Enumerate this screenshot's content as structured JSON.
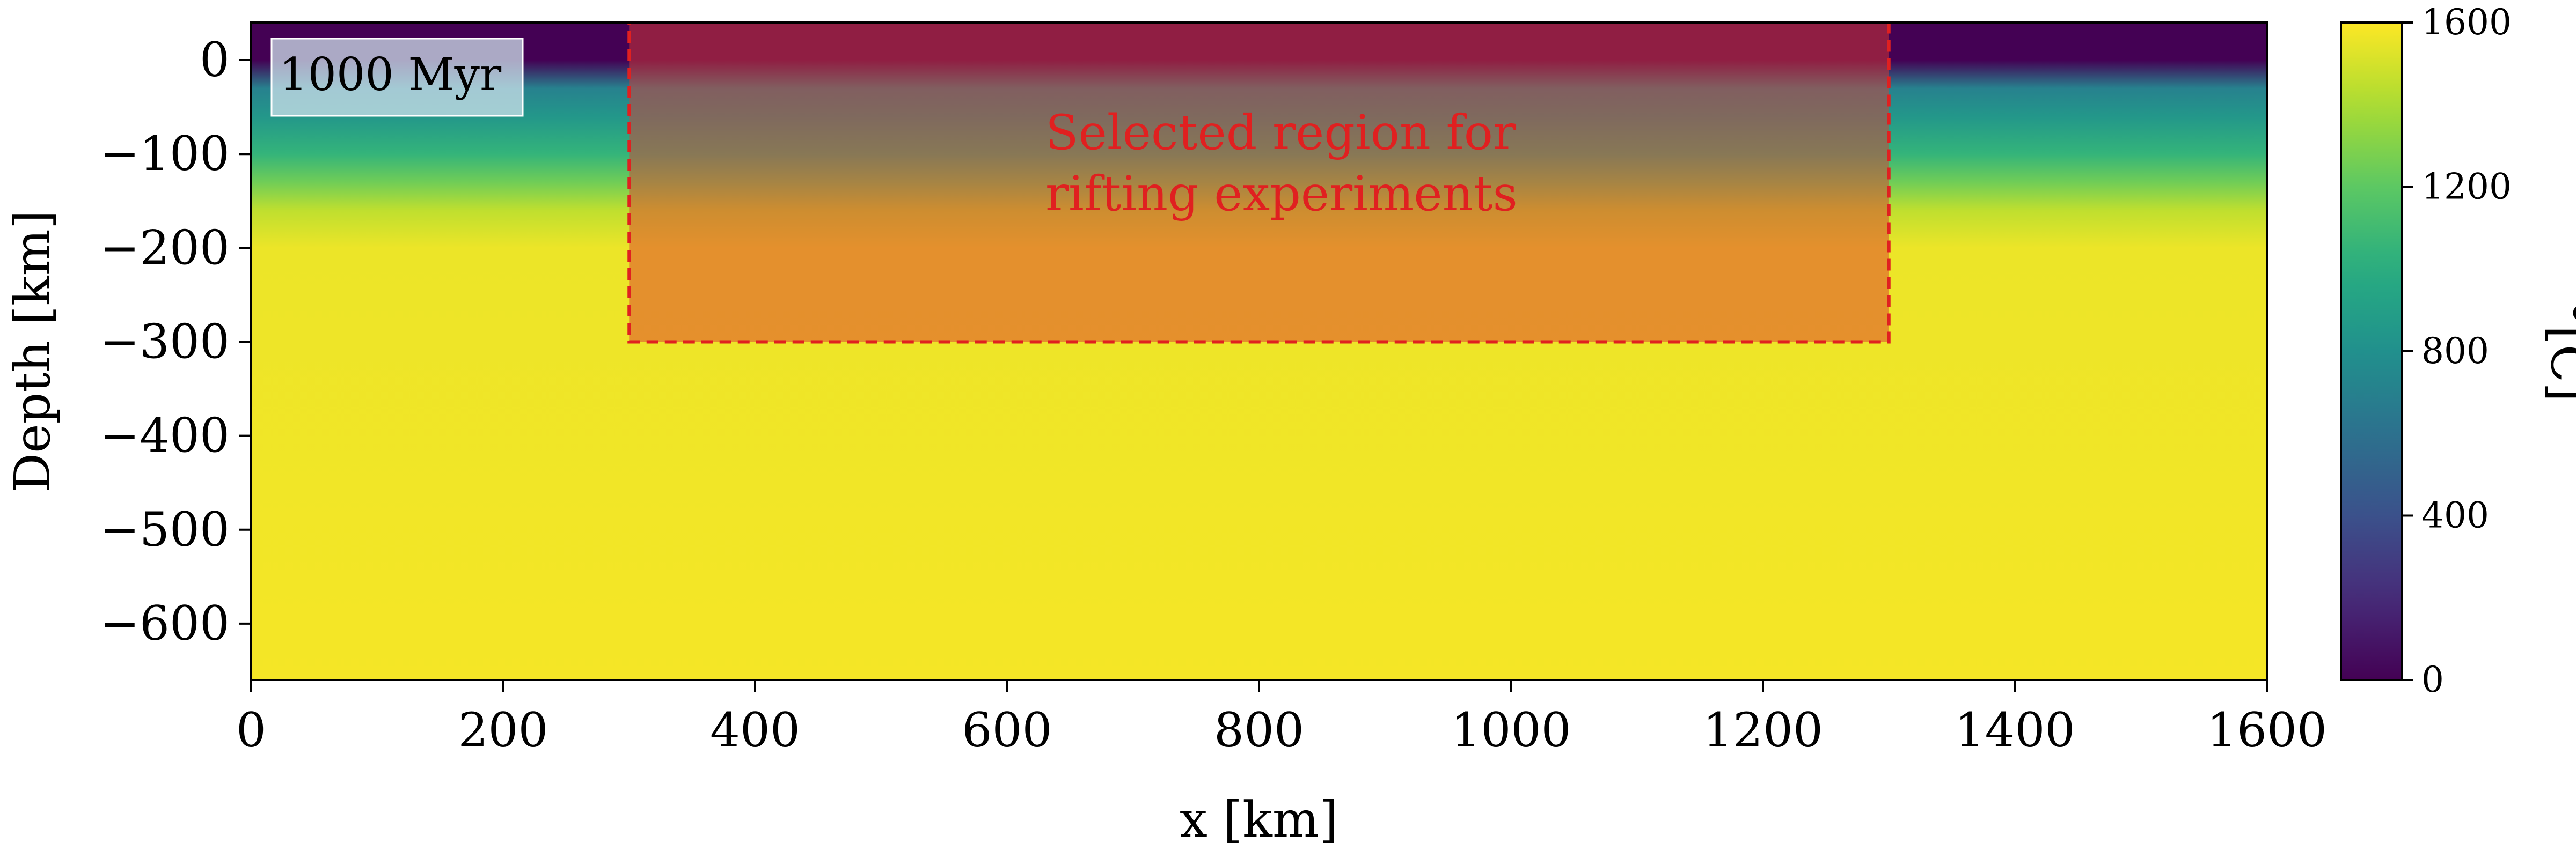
{
  "chart_data": {
    "type": "heatmap",
    "title": "",
    "xlabel": "x [km]",
    "ylabel": "Depth [km]",
    "xlim": [
      0,
      1600
    ],
    "ylim": [
      -660,
      40
    ],
    "xticks": [
      "0",
      "200",
      "400",
      "600",
      "800",
      "1000",
      "1200",
      "1400",
      "1600"
    ],
    "xtick_values": [
      0,
      200,
      400,
      600,
      800,
      1000,
      1200,
      1400,
      1600
    ],
    "yticks": [
      "0",
      "−100",
      "−200",
      "−300",
      "−400",
      "−500",
      "−600"
    ],
    "ytick_values": [
      0,
      -100,
      -200,
      -300,
      -400,
      -500,
      -600
    ],
    "colormap": "viridis",
    "colorbar": {
      "label": "°[C]",
      "range": [
        0,
        1600
      ],
      "ticks": [
        "0",
        "400",
        "800",
        "1200",
        "1600"
      ],
      "tick_values": [
        0,
        400,
        800,
        1200,
        1600
      ]
    },
    "temperature_profile": [
      {
        "depth": 40,
        "temp": 0
      },
      {
        "depth": 0,
        "temp": 0
      },
      {
        "depth": -30,
        "temp": 700
      },
      {
        "depth": -60,
        "temp": 850
      },
      {
        "depth": -100,
        "temp": 1050
      },
      {
        "depth": -130,
        "temp": 1250
      },
      {
        "depth": -160,
        "temp": 1450
      },
      {
        "depth": -200,
        "temp": 1560
      },
      {
        "depth": -660,
        "temp": 1580
      }
    ],
    "time_badge": "1000 Myr",
    "selected_region": {
      "x_range": [
        300,
        1300
      ],
      "depth_range": [
        -300,
        40
      ],
      "label_line1": "Selected region for",
      "label_line2": "rifting experiments",
      "color": "#e02020"
    }
  }
}
